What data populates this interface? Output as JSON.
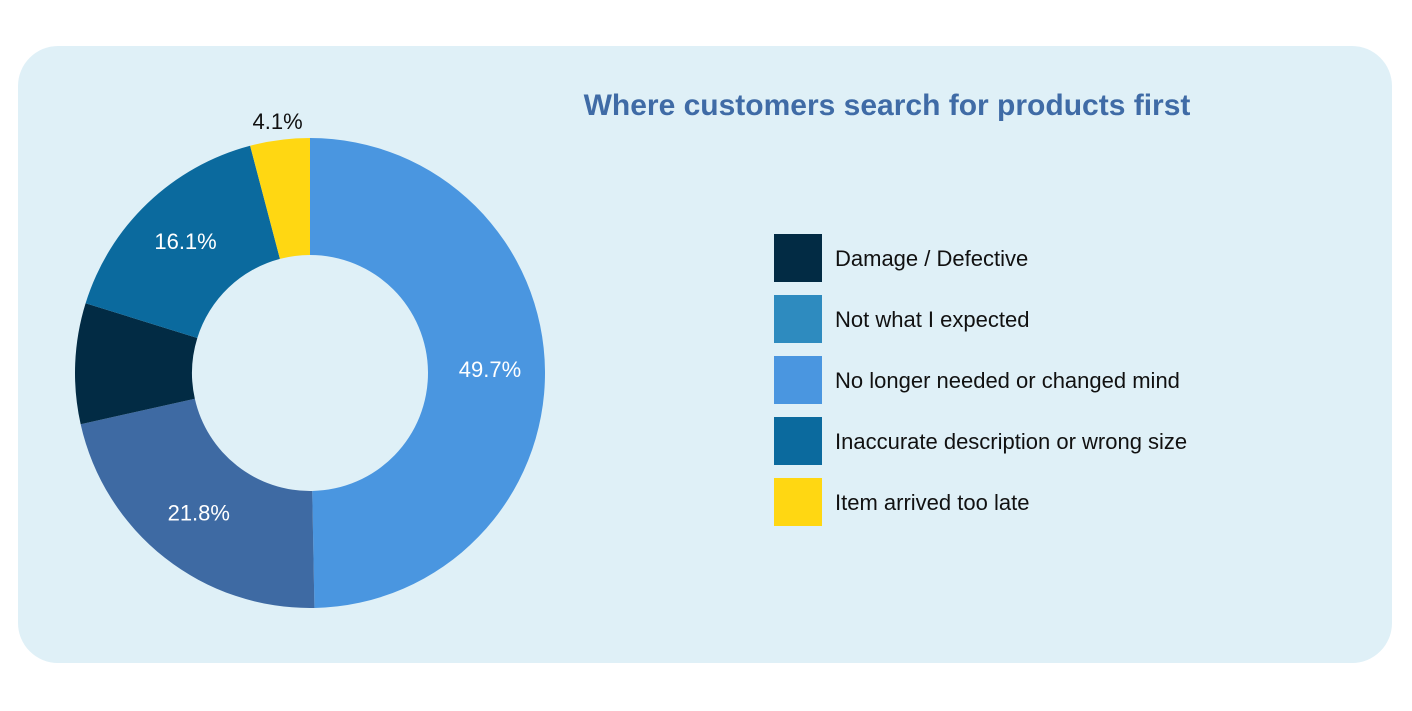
{
  "chart_data": {
    "type": "donut",
    "title": "Where customers  search for products  first",
    "categories": [
      "Damage / Defective",
      "Not what I expected",
      "No longer needed or changed mind",
      "Inaccurate description or wrong size",
      "Item arrived too late"
    ],
    "values": [
      8.3,
      21.8,
      49.7,
      16.1,
      4.1
    ],
    "value_labels": [
      null,
      "21.8%",
      "49.7%",
      "16.1%",
      "4.1%"
    ],
    "colors": [
      "#022b44",
      "#3e6aa3",
      "#4a96e0",
      "#0b6a9e",
      "#ffd712"
    ],
    "legend_colors": [
      "#022b44",
      "#2e8bbf",
      "#4a96e0",
      "#0b6a9e",
      "#ffd712"
    ]
  }
}
